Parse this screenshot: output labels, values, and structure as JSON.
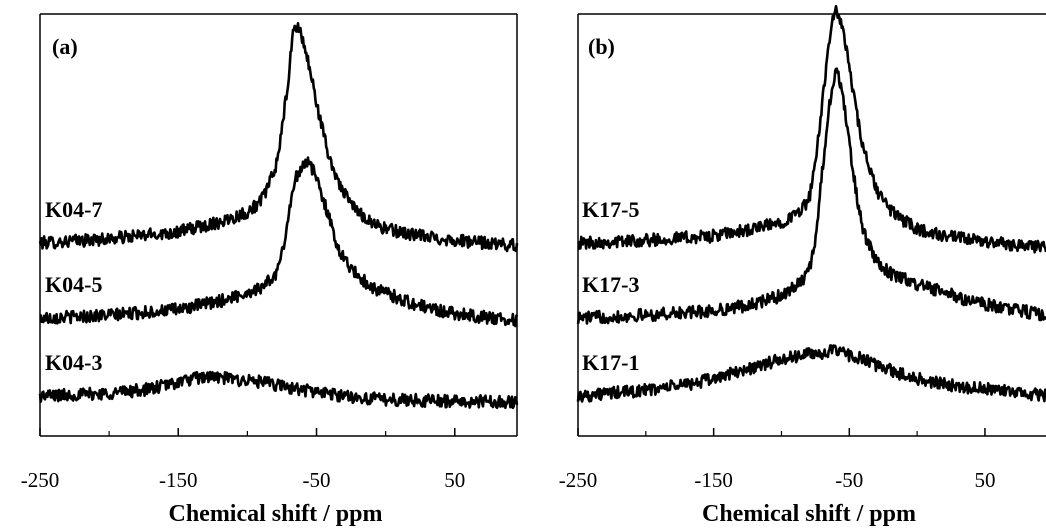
{
  "chart_data": [
    {
      "type": "line",
      "panel_label": "(a)",
      "xlabel": "Chemical shift / ppm",
      "xlim": [
        -250,
        95
      ],
      "xticks": [
        -250,
        -150,
        -50,
        50
      ],
      "minor_xticks": [
        -200,
        -100,
        0
      ],
      "grid": false,
      "yaxis_ticks": false,
      "series": [
        {
          "name": "K04-7",
          "color": "#000000",
          "baseline_offset": 2.0,
          "noise": 0.045,
          "x": [
            -250,
            -200,
            -150,
            -120,
            -100,
            -90,
            -80,
            -75,
            -70,
            -67,
            -65,
            -62,
            -60,
            -55,
            -50,
            -45,
            -40,
            -30,
            -20,
            -10,
            0,
            20,
            40,
            60,
            95
          ],
          "y": [
            0.0,
            0.03,
            0.08,
            0.15,
            0.22,
            0.3,
            0.52,
            0.8,
            1.2,
            1.5,
            1.55,
            1.52,
            1.45,
            1.25,
            1.0,
            0.78,
            0.58,
            0.35,
            0.22,
            0.15,
            0.1,
            0.06,
            0.03,
            0.01,
            -0.02
          ]
        },
        {
          "name": "K04-5",
          "color": "#000000",
          "baseline_offset": 1.0,
          "noise": 0.045,
          "x": [
            -250,
            -200,
            -150,
            -120,
            -100,
            -90,
            -80,
            -75,
            -70,
            -65,
            -60,
            -57,
            -55,
            -50,
            -45,
            -40,
            -35,
            -30,
            -20,
            -10,
            0,
            20,
            40,
            60,
            95
          ],
          "y": [
            0.0,
            0.02,
            0.06,
            0.12,
            0.18,
            0.22,
            0.3,
            0.45,
            0.75,
            1.0,
            1.1,
            1.12,
            1.1,
            1.0,
            0.85,
            0.68,
            0.52,
            0.42,
            0.3,
            0.22,
            0.18,
            0.1,
            0.05,
            0.02,
            -0.02
          ]
        },
        {
          "name": "K04-3",
          "color": "#000000",
          "baseline_offset": 0.0,
          "noise": 0.045,
          "x": [
            -250,
            -200,
            -170,
            -150,
            -130,
            -110,
            -90,
            -70,
            -50,
            -30,
            -10,
            20,
            60,
            95
          ],
          "y": [
            0.0,
            0.02,
            0.05,
            0.1,
            0.14,
            0.12,
            0.1,
            0.06,
            0.03,
            0.0,
            -0.02,
            -0.03,
            -0.04,
            -0.04
          ]
        }
      ]
    },
    {
      "type": "line",
      "panel_label": "(b)",
      "xlabel": "Chemical shift / ppm",
      "xlim": [
        -250,
        95
      ],
      "xticks": [
        -250,
        -150,
        -50,
        50
      ],
      "minor_xticks": [
        -200,
        -100,
        0
      ],
      "grid": false,
      "yaxis_ticks": false,
      "series": [
        {
          "name": "K17-5",
          "color": "#000000",
          "baseline_offset": 2.0,
          "noise": 0.045,
          "x": [
            -250,
            -200,
            -150,
            -120,
            -100,
            -90,
            -80,
            -75,
            -70,
            -65,
            -62,
            -60,
            -57,
            -55,
            -50,
            -45,
            -40,
            -30,
            -20,
            -10,
            0,
            20,
            40,
            60,
            95
          ],
          "y": [
            0.0,
            0.02,
            0.05,
            0.1,
            0.15,
            0.2,
            0.3,
            0.55,
            1.0,
            1.45,
            1.6,
            1.65,
            1.6,
            1.55,
            1.25,
            0.95,
            0.68,
            0.38,
            0.24,
            0.16,
            0.1,
            0.05,
            0.02,
            0.0,
            -0.03
          ]
        },
        {
          "name": "K17-3",
          "color": "#000000",
          "baseline_offset": 1.0,
          "noise": 0.045,
          "x": [
            -250,
            -200,
            -150,
            -120,
            -100,
            -90,
            -80,
            -75,
            -70,
            -65,
            -62,
            -60,
            -57,
            -55,
            -50,
            -45,
            -40,
            -30,
            -20,
            -10,
            0,
            20,
            40,
            60,
            95
          ],
          "y": [
            0.0,
            0.02,
            0.05,
            0.1,
            0.16,
            0.22,
            0.32,
            0.55,
            1.05,
            1.5,
            1.68,
            1.75,
            1.7,
            1.6,
            1.25,
            0.9,
            0.62,
            0.4,
            0.32,
            0.28,
            0.24,
            0.18,
            0.12,
            0.08,
            0.02
          ]
        },
        {
          "name": "K17-1",
          "color": "#000000",
          "baseline_offset": 0.0,
          "noise": 0.045,
          "x": [
            -250,
            -200,
            -160,
            -130,
            -100,
            -80,
            -60,
            -45,
            -30,
            -10,
            10,
            40,
            70,
            95
          ],
          "y": [
            0.0,
            0.04,
            0.1,
            0.18,
            0.26,
            0.3,
            0.32,
            0.28,
            0.22,
            0.15,
            0.1,
            0.06,
            0.03,
            0.0
          ]
        }
      ]
    }
  ]
}
